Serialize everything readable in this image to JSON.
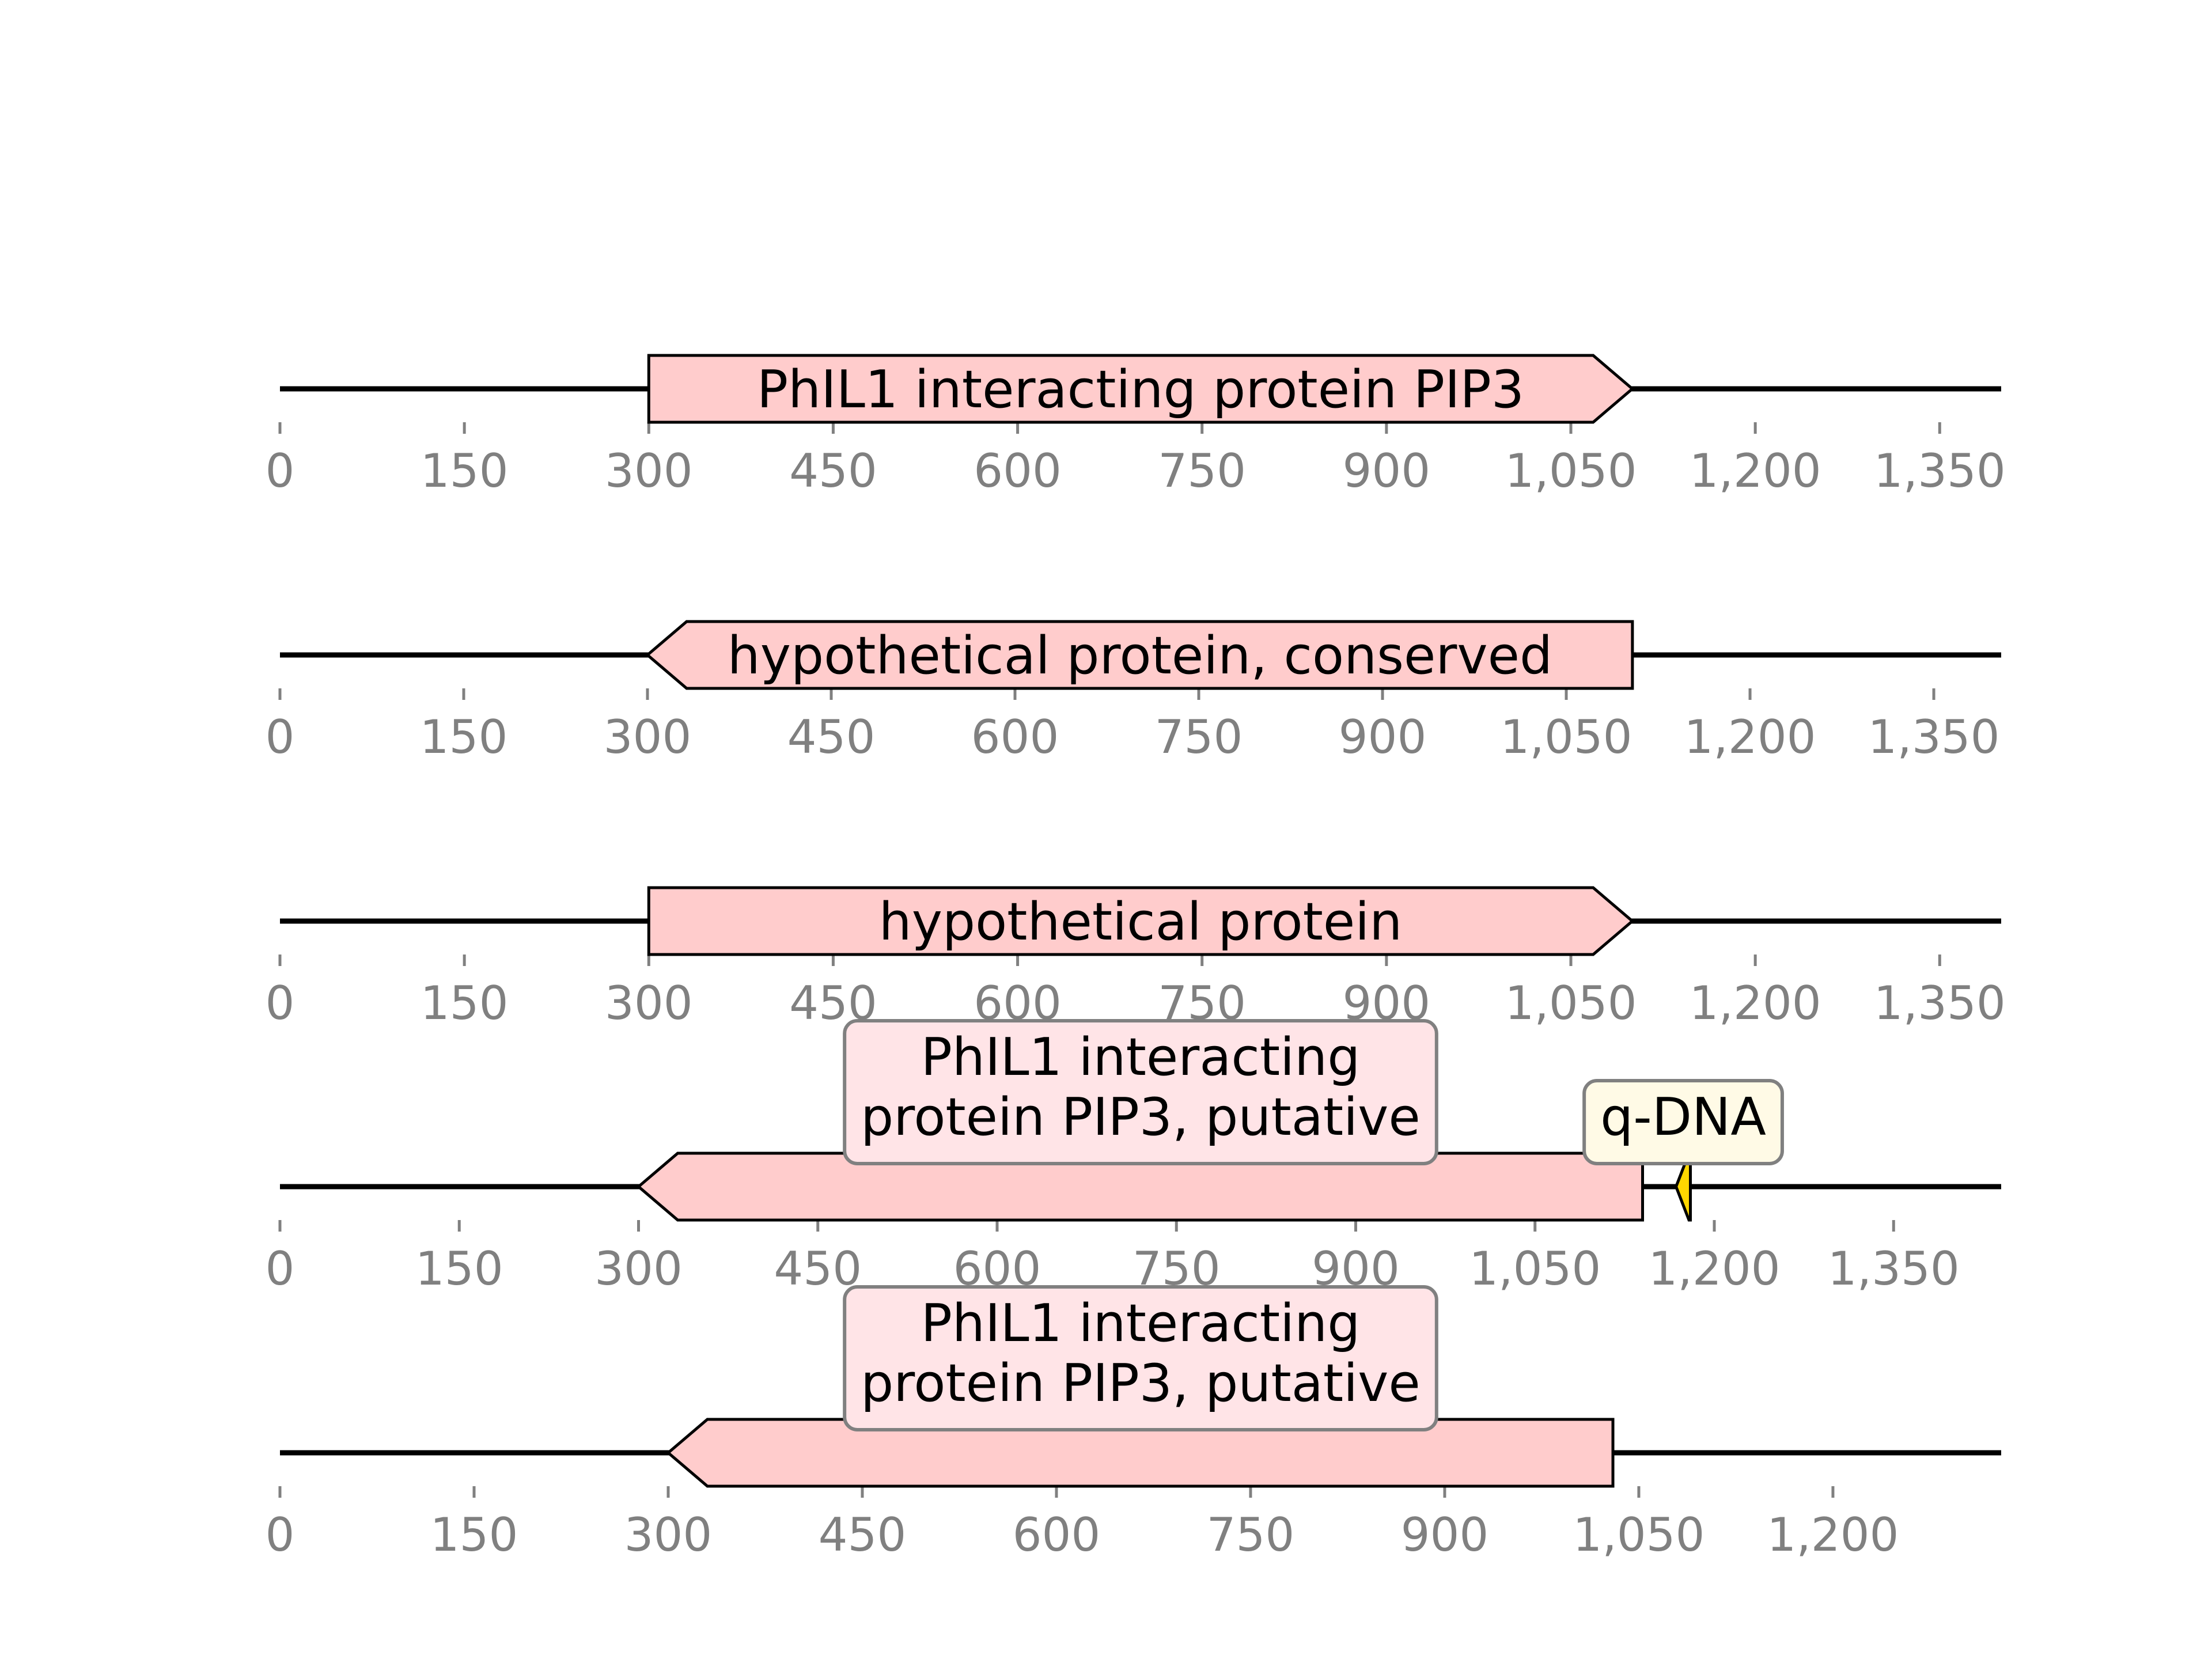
{
  "tracks": [
    {
      "sequence_length": 1400,
      "ticks": [
        0,
        150,
        300,
        450,
        600,
        750,
        900,
        1050,
        1200,
        1350
      ],
      "tick_labels": [
        "0",
        "150",
        "300",
        "450",
        "600",
        "750",
        "900",
        "1,050",
        "1,200",
        "1,350"
      ],
      "features": [
        {
          "start": 300,
          "end": 1100,
          "strand": 1,
          "label": "PhIL1 interacting protein PIP3",
          "label_style": "inline",
          "color": "#ffcccc"
        }
      ]
    },
    {
      "sequence_length": 1405,
      "ticks": [
        0,
        150,
        300,
        450,
        600,
        750,
        900,
        1050,
        1200,
        1350
      ],
      "tick_labels": [
        "0",
        "150",
        "300",
        "450",
        "600",
        "750",
        "900",
        "1,050",
        "1,200",
        "1,350"
      ],
      "features": [
        {
          "start": 300,
          "end": 1104,
          "strand": -1,
          "label": "hypothetical protein, conserved",
          "label_style": "inline",
          "color": "#ffcccc"
        }
      ]
    },
    {
      "sequence_length": 1400,
      "ticks": [
        0,
        150,
        300,
        450,
        600,
        750,
        900,
        1050,
        1200,
        1350
      ],
      "tick_labels": [
        "0",
        "150",
        "300",
        "450",
        "600",
        "750",
        "900",
        "1,050",
        "1,200",
        "1,350"
      ],
      "features": [
        {
          "start": 300,
          "end": 1100,
          "strand": 1,
          "label": "hypothetical protein",
          "label_style": "inline",
          "color": "#ffcccc"
        }
      ]
    },
    {
      "sequence_length": 1440,
      "ticks": [
        0,
        150,
        300,
        450,
        600,
        750,
        900,
        1050,
        1200,
        1350
      ],
      "tick_labels": [
        "0",
        "150",
        "300",
        "450",
        "600",
        "750",
        "900",
        "1,050",
        "1,200",
        "1,350"
      ],
      "features": [
        {
          "start": 300,
          "end": 1140,
          "strand": -1,
          "label": "PhIL1 interacting\nprotein PIP3, putative",
          "label_style": "box",
          "color": "#ffcccc"
        },
        {
          "start": 1168,
          "end": 1180,
          "strand": -1,
          "label": "q-DNA",
          "label_style": "box",
          "color": "#ffd700"
        }
      ]
    },
    {
      "sequence_length": 1330,
      "ticks": [
        0,
        150,
        300,
        450,
        600,
        750,
        900,
        1050,
        1200
      ],
      "tick_labels": [
        "0",
        "150",
        "300",
        "450",
        "600",
        "750",
        "900",
        "1,050",
        "1,200"
      ],
      "features": [
        {
          "start": 300,
          "end": 1030,
          "strand": -1,
          "label": "PhIL1 interacting\nprotein PIP3, putative",
          "label_style": "box",
          "color": "#ffcccc"
        }
      ]
    }
  ]
}
